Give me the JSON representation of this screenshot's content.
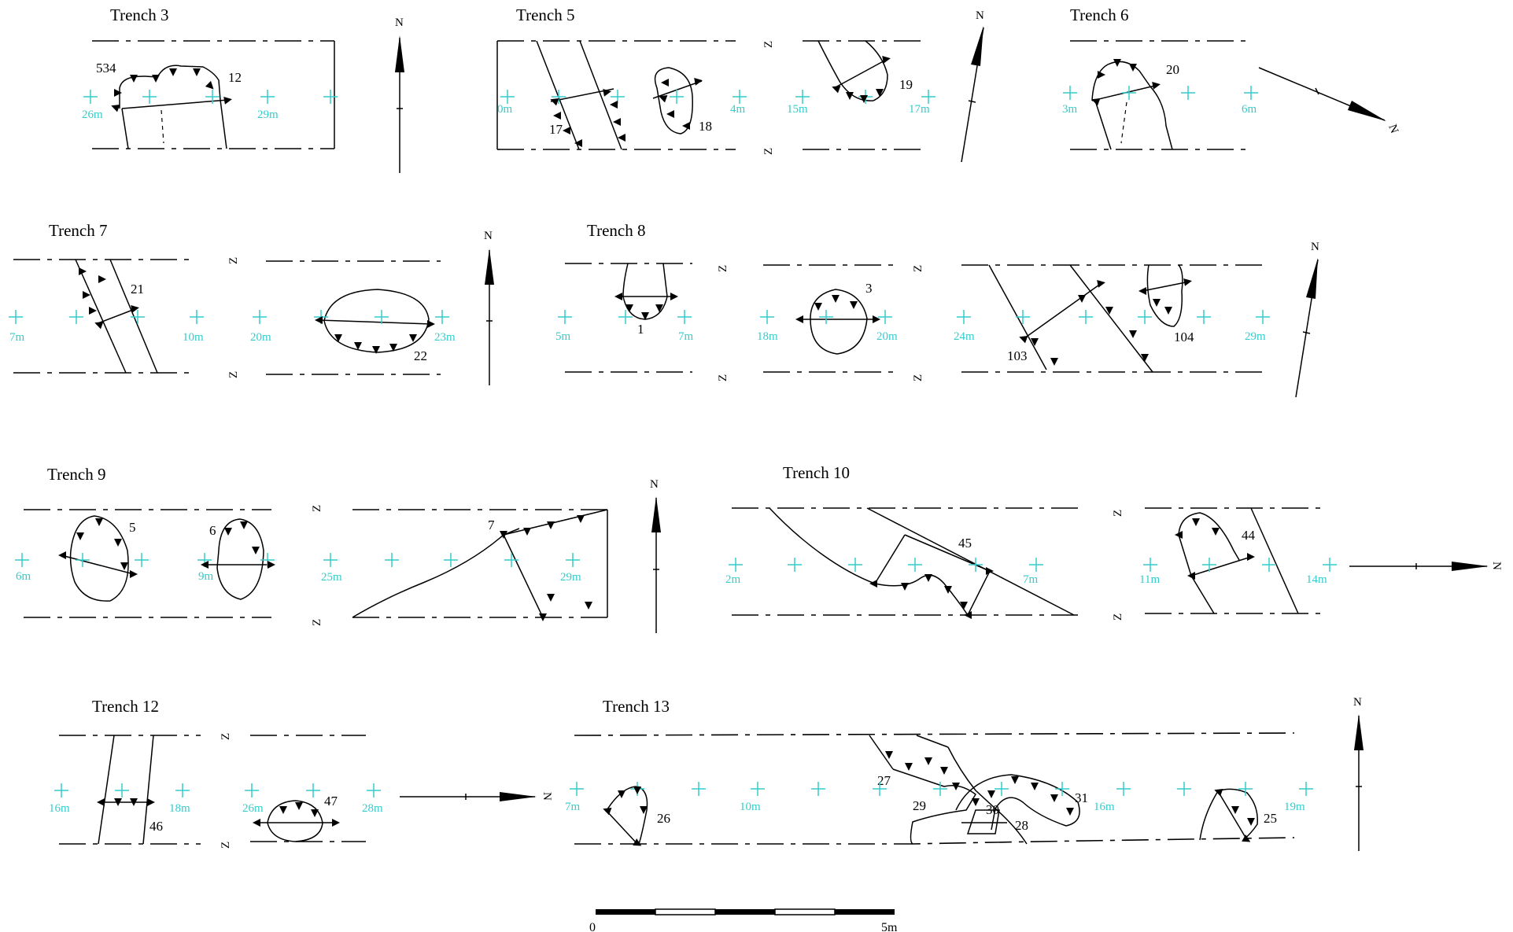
{
  "colors": {
    "ink": "#000000",
    "grid": "#33cccc"
  },
  "trenches": [
    {
      "name": "Trench 3",
      "grid_labels": [
        "26m",
        "29m"
      ],
      "features": [
        "534",
        "12"
      ]
    },
    {
      "name": "Trench 5",
      "grid_labels": [
        "0m",
        "4m",
        "15m",
        "17m"
      ],
      "features": [
        "17",
        "18",
        "19"
      ]
    },
    {
      "name": "Trench 6",
      "grid_labels": [
        "3m",
        "6m"
      ],
      "features": [
        "20"
      ]
    },
    {
      "name": "Trench 7",
      "grid_labels": [
        "7m",
        "10m",
        "20m",
        "23m"
      ],
      "features": [
        "21",
        "22"
      ]
    },
    {
      "name": "Trench 8",
      "grid_labels": [
        "5m",
        "7m",
        "18m",
        "20m",
        "24m",
        "29m"
      ],
      "features": [
        "1",
        "3",
        "103",
        "104"
      ]
    },
    {
      "name": "Trench 9",
      "grid_labels": [
        "6m",
        "9m",
        "25m",
        "29m"
      ],
      "features": [
        "5",
        "6",
        "7"
      ]
    },
    {
      "name": "Trench 10",
      "grid_labels": [
        "2m",
        "7m",
        "11m",
        "14m"
      ],
      "features": [
        "45",
        "44"
      ]
    },
    {
      "name": "Trench 12",
      "grid_labels": [
        "16m",
        "18m",
        "26m",
        "28m"
      ],
      "features": [
        "46",
        "47"
      ]
    },
    {
      "name": "Trench 13",
      "grid_labels": [
        "7m",
        "10m",
        "16m",
        "19m"
      ],
      "features": [
        "27",
        "29",
        "30",
        "28",
        "31",
        "26",
        "25"
      ]
    }
  ],
  "north_label": "N",
  "break_mark": "Z",
  "scale_bar": {
    "start": "0",
    "end": "5m"
  }
}
